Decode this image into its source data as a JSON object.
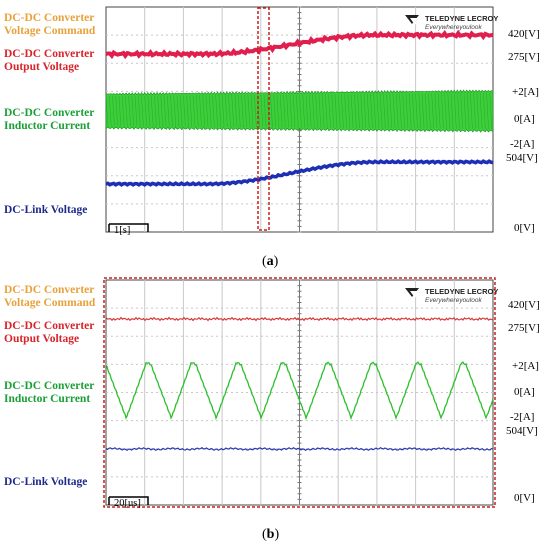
{
  "brand": {
    "name": "TELEDYNE LECROY",
    "tagline": "Everywhereyoulook"
  },
  "panels": [
    {
      "caption": "a",
      "scale_label": "1[s]",
      "left_labels": {
        "command": "DC-DC Converter\nVoltage Command",
        "output": "DC-DC Converter\nOutput Voltage",
        "inductor": "DC-DC Converter\nInductor Current",
        "link": "DC-Link Voltage"
      },
      "right_labels": [
        "420[V]",
        "275[V]",
        "+2[A]",
        "0[A]",
        "-2[A]",
        "504[V]",
        "0[V]"
      ]
    },
    {
      "caption": "b",
      "scale_label": "20[us]",
      "left_labels": {
        "command": "DC-DC Converter\nVoltage Command",
        "output": "DC-DC Converter\nOutput Voltage",
        "inductor": "DC-DC Converter\nInductor Current",
        "link": "DC-Link Voltage"
      },
      "right_labels": [
        "420[V]",
        "275[V]",
        "+2[A]",
        "0[A]",
        "-2[A]",
        "504[V]",
        "0[V]"
      ]
    }
  ],
  "chart_data": [
    {
      "type": "line",
      "panel": "a",
      "time_per_division_s": 1,
      "divisions": 10,
      "series": [
        {
          "name": "DC-DC Converter Output Voltage",
          "color": "#d8232a",
          "unit": "V",
          "x": [
            0,
            2.6,
            7.0,
            10
          ],
          "y": [
            275,
            275,
            420,
            420
          ]
        },
        {
          "name": "DC-DC Converter Inductor Current",
          "color": "#1aa037",
          "unit": "A",
          "x": [
            0,
            10
          ],
          "y_center": [
            0,
            0
          ],
          "envelope_peak": [
            1.3,
            1.9
          ]
        },
        {
          "name": "DC-Link Voltage",
          "color": "#1e2a8c",
          "unit": "V",
          "x": [
            0,
            2.6,
            7.0,
            10
          ],
          "y": [
            310,
            310,
            504,
            504
          ]
        }
      ],
      "scale_refs": [
        "420[V]",
        "275[V]",
        "+2[A]",
        "0[A]",
        "-2[A]",
        "504[V]",
        "0[V]"
      ],
      "highlight": "zoom window (dashed box) near t = 4.3 s"
    },
    {
      "type": "line",
      "panel": "b",
      "time_per_division_us": 20,
      "divisions": 10,
      "series": [
        {
          "name": "DC-DC Converter Output Voltage",
          "color": "#d8232a",
          "unit": "V",
          "level": 420
        },
        {
          "name": "DC-DC Converter Inductor Current",
          "color": "#1aa037",
          "unit": "A",
          "periodic": true,
          "peak": 1.6,
          "trough": -1.3,
          "cycles": 9
        },
        {
          "name": "DC-Link Voltage",
          "color": "#1e2a8c",
          "unit": "V",
          "level": 450
        }
      ],
      "scale_refs": [
        "420[V]",
        "275[V]",
        "+2[A]",
        "0[A]",
        "-2[A]",
        "504[V]",
        "0[V]"
      ]
    }
  ]
}
